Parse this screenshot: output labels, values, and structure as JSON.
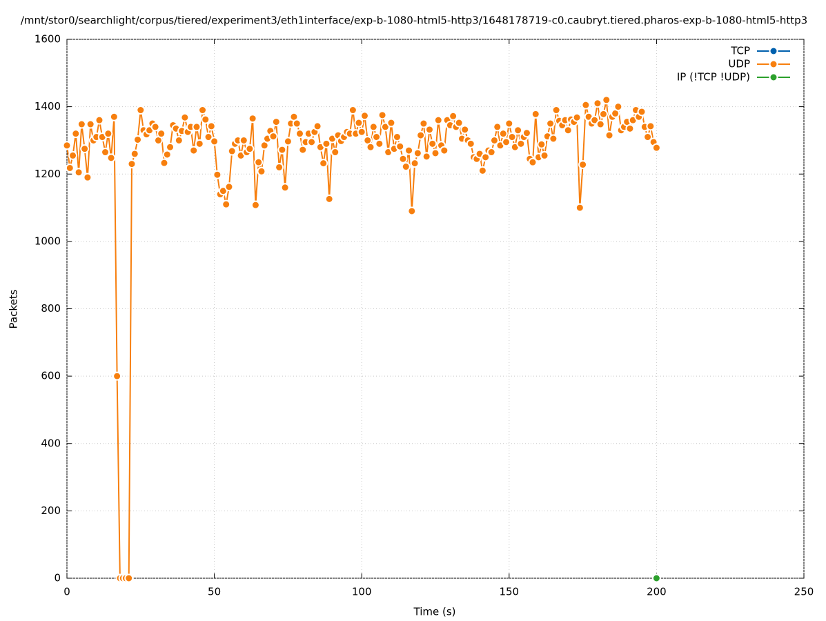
{
  "chart_data": {
    "type": "line",
    "title": "/mnt/stor0/searchlight/corpus/tiered/experiment3/eth1interface/exp-b-1080-html5-http3/1648178719-c0.caubryt.tiered.pharos-exp-b-1080-html5-http3",
    "x_label": "Time (s)",
    "y_label": "Packets",
    "xlim": [
      0,
      250
    ],
    "xticks": [
      0,
      50,
      100,
      150,
      200,
      250
    ],
    "ylim": [
      0,
      1600
    ],
    "yticks": [
      0,
      200,
      400,
      600,
      800,
      1000,
      1200,
      1400,
      1600
    ],
    "grid": true,
    "legend": "top-right",
    "series": [
      {
        "name": "TCP",
        "color": "#0060ad",
        "x": [],
        "values": []
      },
      {
        "name": "UDP",
        "color": "#f77f0e",
        "x": [
          0,
          1,
          2,
          3,
          4,
          5,
          6,
          7,
          8,
          9,
          10,
          11,
          12,
          13,
          14,
          15,
          16,
          17,
          18,
          19,
          20,
          21,
          22,
          23,
          24,
          25,
          26,
          27,
          28,
          29,
          30,
          31,
          32,
          33,
          34,
          35,
          36,
          37,
          38,
          39,
          40,
          41,
          42,
          43,
          44,
          45,
          46,
          47,
          48,
          49,
          50,
          51,
          52,
          53,
          54,
          55,
          56,
          57,
          58,
          59,
          60,
          61,
          62,
          63,
          64,
          65,
          66,
          67,
          68,
          69,
          70,
          71,
          72,
          73,
          74,
          75,
          76,
          77,
          78,
          79,
          80,
          81,
          82,
          83,
          84,
          85,
          86,
          87,
          88,
          89,
          90,
          91,
          92,
          93,
          94,
          95,
          96,
          97,
          98,
          99,
          100,
          101,
          102,
          103,
          104,
          105,
          106,
          107,
          108,
          109,
          110,
          111,
          112,
          113,
          114,
          115,
          116,
          117,
          118,
          119,
          120,
          121,
          122,
          123,
          124,
          125,
          126,
          127,
          128,
          129,
          130,
          131,
          132,
          133,
          134,
          135,
          136,
          137,
          138,
          139,
          140,
          141,
          142,
          143,
          144,
          145,
          146,
          147,
          148,
          149,
          150,
          151,
          152,
          153,
          154,
          155,
          156,
          157,
          158,
          159,
          160,
          161,
          162,
          163,
          164,
          165,
          166,
          167,
          168,
          169,
          170,
          171,
          172,
          173,
          174,
          175,
          176,
          177,
          178,
          179,
          180,
          181,
          182,
          183,
          184,
          185,
          186,
          187,
          188,
          189,
          190,
          191,
          192,
          193,
          194,
          195,
          196,
          197,
          198,
          199,
          200
        ],
        "values": [
          1285,
          1218,
          1255,
          1320,
          1205,
          1348,
          1275,
          1190,
          1348,
          1300,
          1310,
          1360,
          1310,
          1265,
          1320,
          1248,
          1370,
          600,
          0,
          0,
          0,
          0,
          1230,
          1260,
          1302,
          1390,
          1330,
          1318,
          1330,
          1350,
          1340,
          1300,
          1320,
          1233,
          1258,
          1280,
          1345,
          1335,
          1300,
          1328,
          1368,
          1325,
          1340,
          1270,
          1340,
          1290,
          1390,
          1362,
          1310,
          1342,
          1297,
          1198,
          1140,
          1150,
          1110,
          1162,
          1268,
          1290,
          1300,
          1255,
          1300,
          1265,
          1275,
          1365,
          1108,
          1235,
          1208,
          1285,
          1305,
          1328,
          1312,
          1355,
          1220,
          1272,
          1160,
          1297,
          1350,
          1370,
          1350,
          1320,
          1272,
          1295,
          1320,
          1295,
          1325,
          1342,
          1280,
          1232,
          1290,
          1126,
          1305,
          1265,
          1315,
          1298,
          1310,
          1325,
          1320,
          1390,
          1320,
          1352,
          1325,
          1373,
          1300,
          1280,
          1340,
          1310,
          1290,
          1375,
          1340,
          1265,
          1352,
          1275,
          1310,
          1282,
          1245,
          1222,
          1270,
          1090,
          1232,
          1262,
          1315,
          1350,
          1252,
          1332,
          1290,
          1262,
          1360,
          1285,
          1270,
          1360,
          1345,
          1372,
          1340,
          1352,
          1305,
          1332,
          1300,
          1290,
          1250,
          1245,
          1260,
          1210,
          1250,
          1270,
          1265,
          1300,
          1340,
          1285,
          1320,
          1295,
          1350,
          1310,
          1280,
          1330,
          1290,
          1310,
          1322,
          1245,
          1235,
          1378,
          1250,
          1288,
          1255,
          1312,
          1350,
          1305,
          1390,
          1358,
          1345,
          1360,
          1330,
          1362,
          1355,
          1368,
          1100,
          1228,
          1405,
          1370,
          1350,
          1360,
          1410,
          1348,
          1378,
          1420,
          1315,
          1370,
          1380,
          1400,
          1330,
          1340,
          1355,
          1335,
          1360,
          1390,
          1370,
          1385,
          1340,
          1310,
          1342,
          1295,
          1278
        ]
      },
      {
        "name": "IP (!TCP  !UDP)",
        "color": "#2ca02c",
        "x": [
          200
        ],
        "values": [
          0
        ]
      }
    ]
  }
}
